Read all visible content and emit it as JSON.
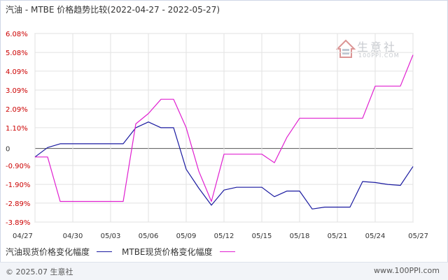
{
  "title": "汽油 - MTBE 价格趋势比较(2022-04-27 - 2022-05-27)",
  "watermark": {
    "name": "生意社",
    "url": "100PPI.COM"
  },
  "footer": {
    "copyright": "© 2025.07 生意社",
    "site": "www.100PPI.com"
  },
  "colors": {
    "gasoline": "#1a1aa0",
    "mtbe": "#e020d0",
    "axis_label": "#cc0000",
    "zero_line": "#555555",
    "grid": "#e2e2e2"
  },
  "chart_data": {
    "type": "line",
    "y_unit": "%",
    "ylim": [
      -3.89,
      6.08
    ],
    "y_ticks": [
      6.08,
      5.08,
      4.09,
      3.09,
      2.09,
      1.1,
      0,
      -0.9,
      -1.9,
      -2.89,
      -3.89
    ],
    "y_tick_labels": [
      "6.08%",
      "5.08%",
      "4.09%",
      "3.09%",
      "2.09%",
      "1.10%",
      "0",
      "-0.90%",
      "-1.90%",
      "-2.89%",
      "-3.89%"
    ],
    "x_ticks": [
      "04/27",
      "04/30",
      "05/03",
      "05/06",
      "05/09",
      "05/12",
      "05/15",
      "05/18",
      "05/21",
      "05/24",
      "05/27"
    ],
    "x": [
      "04/27",
      "04/28",
      "04/29",
      "04/30",
      "05/01",
      "05/02",
      "05/03",
      "05/04",
      "05/05",
      "05/06",
      "05/07",
      "05/08",
      "05/09",
      "05/10",
      "05/11",
      "05/12",
      "05/13",
      "05/14",
      "05/15",
      "05/16",
      "05/17",
      "05/18",
      "05/19",
      "05/20",
      "05/21",
      "05/22",
      "05/23",
      "05/24",
      "05/25",
      "05/26",
      "05/27"
    ],
    "grid": true,
    "legend_position": "bottom-left",
    "series": [
      {
        "name": "汽油现货价格变化幅度",
        "color": "#1a1aa0",
        "values": [
          -0.45,
          0.05,
          0.25,
          0.25,
          0.25,
          0.25,
          0.25,
          0.25,
          1.1,
          1.4,
          1.1,
          1.1,
          -1.1,
          -2.1,
          -3.0,
          -2.2,
          -2.05,
          -2.05,
          -2.05,
          -2.55,
          -2.25,
          -2.25,
          -3.2,
          -3.1,
          -3.1,
          -3.1,
          -1.75,
          -1.8,
          -1.9,
          -1.95,
          -0.95
        ]
      },
      {
        "name": "MTBE现货价格变化幅度",
        "color": "#e020d0",
        "values": [
          -0.45,
          -0.45,
          -2.8,
          -2.8,
          -2.8,
          -2.8,
          -2.8,
          -2.8,
          1.3,
          1.85,
          2.6,
          2.6,
          1.1,
          -1.2,
          -2.8,
          -0.3,
          -0.3,
          -0.3,
          -0.3,
          -0.75,
          0.6,
          1.6,
          1.6,
          1.6,
          1.6,
          1.6,
          1.6,
          3.3,
          3.3,
          3.3,
          4.95
        ]
      }
    ]
  }
}
